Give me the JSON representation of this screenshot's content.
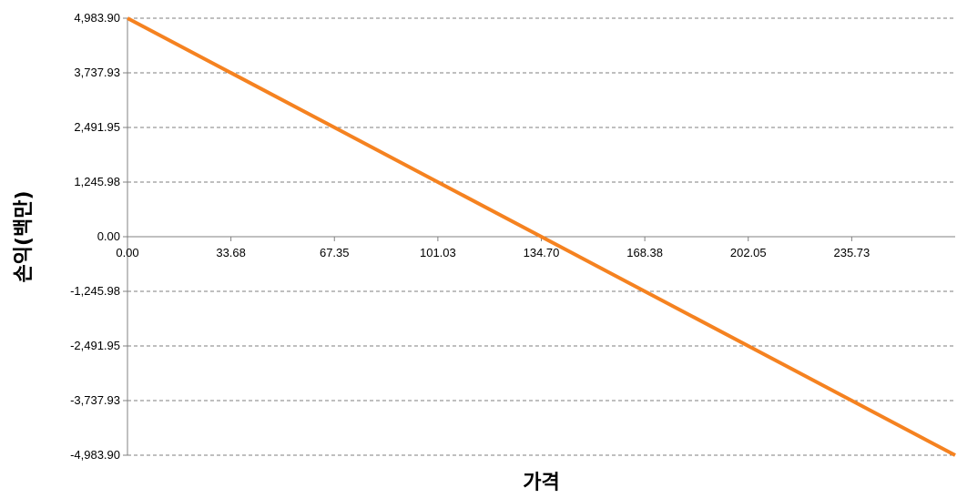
{
  "chart_data": {
    "type": "line",
    "title": "",
    "xlabel": "가격",
    "ylabel": "손익(백만)",
    "x_tick_labels": [
      "0.00",
      "33.68",
      "67.35",
      "101.03",
      "134.70",
      "168.38",
      "202.05",
      "235.73"
    ],
    "y_tick_labels": [
      "4,983.90",
      "3,737.93",
      "2,491.95",
      "1,245.98",
      "0.00",
      "-1,245.98",
      "-2,491.95",
      "-3,737.93",
      "-4,983.90"
    ],
    "y_ticks": [
      4983.9,
      3737.93,
      2491.95,
      1245.98,
      0.0,
      -1245.98,
      -2491.95,
      -3737.93,
      -4983.9
    ],
    "xlim": [
      0,
      269.4
    ],
    "ylim": [
      -4983.9,
      4983.9
    ],
    "grid": true,
    "series": [
      {
        "color": "#f58220",
        "x": [
          0,
          269.4
        ],
        "y": [
          4983.9,
          -4983.9
        ]
      }
    ]
  }
}
